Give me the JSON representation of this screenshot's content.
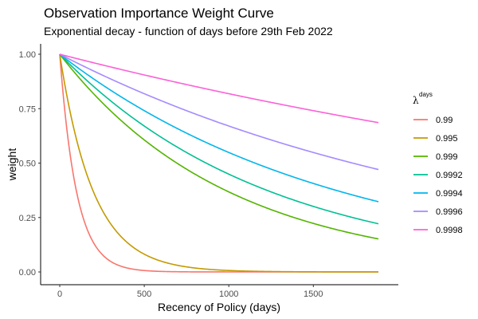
{
  "chart_data": {
    "type": "line",
    "title": "Observation Importance Weight Curve",
    "subtitle": "Exponential decay - function of days before 29th Feb 2022",
    "xlabel": "Recency of Policy (days)",
    "ylabel": "weight",
    "xlim": [
      0,
      1885
    ],
    "ylim": [
      0,
      1
    ],
    "x_ticks": [
      0,
      500,
      1000,
      1500
    ],
    "x_tick_labels": [
      "0",
      "500",
      "1000",
      "1500"
    ],
    "y_ticks": [
      0,
      0.25,
      0.5,
      0.75,
      1
    ],
    "y_tick_labels": [
      "0.00",
      "0.25",
      "0.50",
      "0.75",
      "1.00"
    ],
    "grid": false,
    "legend_placement": "right",
    "legend_title": {
      "base": "λ",
      "sup": "days"
    },
    "formula": "weight = lambda ^ days",
    "series": [
      {
        "name": "0.99",
        "lambda": 0.99,
        "color": "#F8766D"
      },
      {
        "name": "0.995",
        "lambda": 0.995,
        "color": "#C49A00"
      },
      {
        "name": "0.999",
        "lambda": 0.999,
        "color": "#53B400"
      },
      {
        "name": "0.9992",
        "lambda": 0.9992,
        "color": "#00C094"
      },
      {
        "name": "0.9994",
        "lambda": 0.9994,
        "color": "#00B6EB"
      },
      {
        "name": "0.9996",
        "lambda": 0.9996,
        "color": "#A58AFF"
      },
      {
        "name": "0.9998",
        "lambda": 0.9998,
        "color": "#FB61D7"
      }
    ]
  }
}
